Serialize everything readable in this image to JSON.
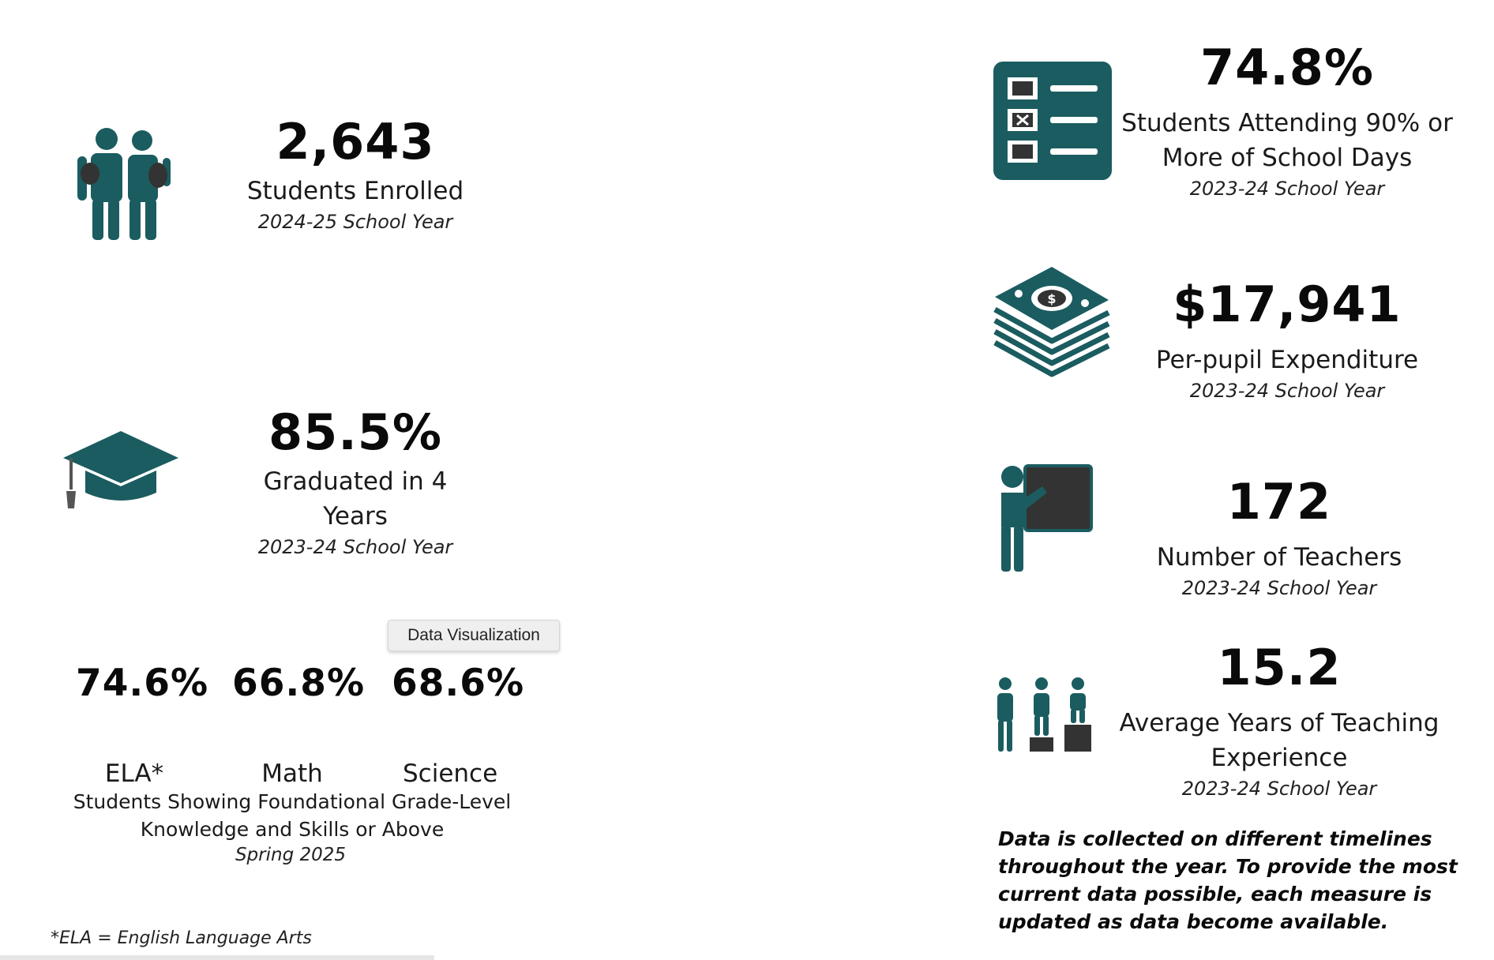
{
  "colors": {
    "accent": "#1b5c60",
    "dark": "#3a3a3a"
  },
  "enrolled": {
    "value": "2,643",
    "label": "Students Enrolled",
    "year": "2024-25 School Year",
    "icon": "students-icon"
  },
  "graduated": {
    "value": "85.5%",
    "label": "Graduated in 4 Years",
    "year": "2023-24 School Year",
    "icon": "graduation-cap-icon"
  },
  "subjects": {
    "items": [
      {
        "value": "74.6%",
        "label": "ELA*"
      },
      {
        "value": "66.8%",
        "label": "Math"
      },
      {
        "value": "68.6%",
        "label": "Science"
      }
    ],
    "description_line1": "Students Showing Foundational Grade-Level",
    "description_line2": "Knowledge and Skills or Above",
    "period": "Spring 2025"
  },
  "tooltip": "Data Visualization",
  "footnote": "*ELA = English Language Arts",
  "attendance": {
    "value": "74.8%",
    "label_line1": "Students Attending 90% or",
    "label_line2": "More of School Days",
    "year": "2023-24 School Year",
    "icon": "checklist-icon"
  },
  "expenditure": {
    "value": "$17,941",
    "label": "Per-pupil Expenditure",
    "year": "2023-24 School Year",
    "icon": "money-stack-icon"
  },
  "teachers": {
    "value": "172",
    "label": "Number of Teachers",
    "year": "2023-24 School Year",
    "icon": "teacher-board-icon"
  },
  "experience": {
    "value": "15.2",
    "label_line1": "Average Years of Teaching",
    "label_line2": "Experience",
    "year": "2023-24 School Year",
    "icon": "podium-people-icon"
  },
  "notice": "Data is collected on different timelines throughout the year. To provide the most current data possible, each measure is updated as data become available."
}
